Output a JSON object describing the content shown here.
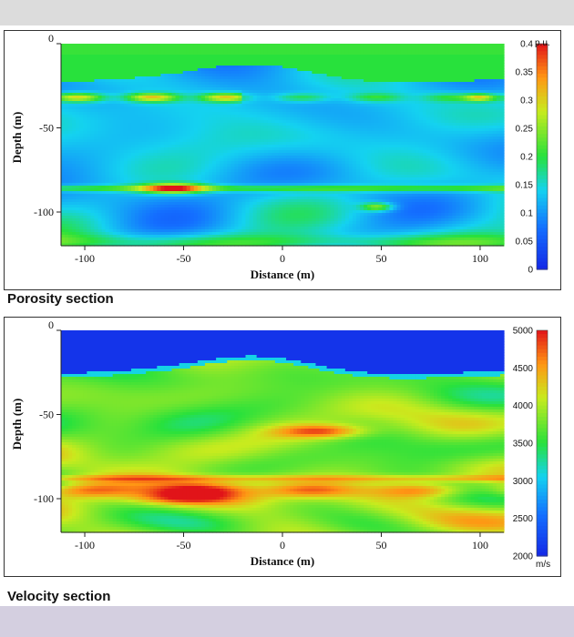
{
  "chart_data": [
    {
      "type": "heatmap",
      "caption": "Porosity section",
      "xlabel": "Distance (m)",
      "ylabel": "Depth (m)",
      "xlim": [
        -112,
        112
      ],
      "ylim": [
        -120,
        0
      ],
      "x_ticks": [
        -100,
        -50,
        0,
        50,
        100
      ],
      "x_tick_labels": [
        "-100",
        "-50",
        "0",
        "50",
        "100"
      ],
      "y_ticks": [
        0,
        -50,
        -100
      ],
      "y_tick_labels": [
        "0",
        "-50",
        "-100"
      ],
      "colorbar": {
        "unit": "p.u.",
        "min": 0,
        "max": 0.4,
        "ticks": [
          0,
          0.05,
          0.1,
          0.15,
          0.2,
          0.25,
          0.3,
          0.35,
          0.4
        ],
        "tick_labels": [
          "0",
          "0.05",
          "0.1",
          "0.15",
          "0.2",
          "0.25",
          "0.3",
          "0.35",
          "0.4"
        ]
      },
      "colors": {
        "low": "#1f3fff",
        "mid": "#33e020",
        "high": "#e8121a"
      }
    },
    {
      "type": "heatmap",
      "caption": "Velocity section",
      "xlabel": "Distance (m)",
      "ylabel": "Depth (m)",
      "xlim": [
        -112,
        112
      ],
      "ylim": [
        -120,
        0
      ],
      "x_ticks": [
        -100,
        -50,
        0,
        50,
        100
      ],
      "x_tick_labels": [
        "-100",
        "-50",
        "0",
        "50",
        "100"
      ],
      "y_ticks": [
        0,
        -50,
        -100
      ],
      "y_tick_labels": [
        "0",
        "-50",
        "-100"
      ],
      "colorbar": {
        "unit": "m/s",
        "min": 2000,
        "max": 5000,
        "ticks": [
          2000,
          2500,
          3000,
          3500,
          4000,
          4500,
          5000
        ],
        "tick_labels": [
          "2000",
          "2500",
          "3000",
          "3500",
          "4000",
          "4500",
          "5000"
        ]
      },
      "colors": {
        "low": "#1f3fff",
        "mid": "#33e020",
        "high": "#e8121a"
      }
    }
  ]
}
